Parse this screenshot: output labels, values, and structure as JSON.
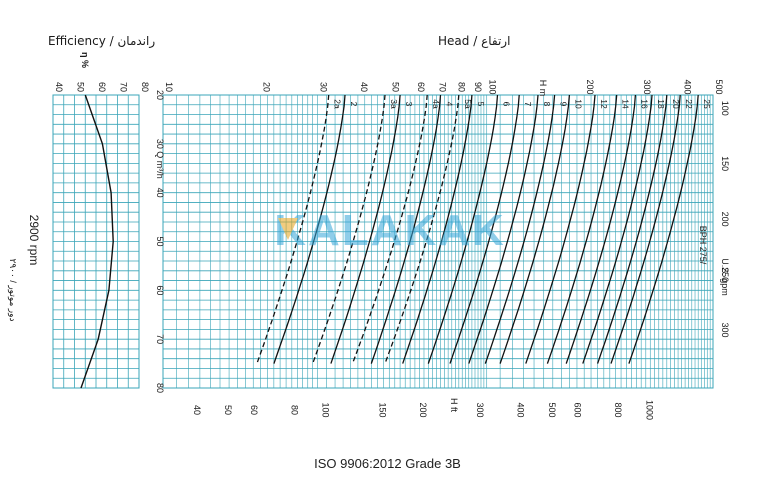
{
  "chart_data": {
    "type": "line",
    "footer": "ISO 9906:2012 Grade 3B",
    "speed_label": "2900 rpm",
    "speed_label_fa": "دور موتور / ۲۹۰۰",
    "model_label": "BPH 275/",
    "efficiency_panel": {
      "title": "Efficiency / راندمان",
      "axis_label": "η %",
      "ticks": [
        40,
        50,
        60,
        70,
        80
      ],
      "range": [
        40,
        80
      ],
      "curve": {
        "q": [
          20,
          30,
          40,
          50,
          60,
          70,
          80
        ],
        "eta": [
          55,
          63,
          67,
          68,
          66,
          61,
          53
        ]
      }
    },
    "head_panel": {
      "title": "Head / ارتفاع",
      "top_axis": {
        "label": "H m",
        "ticks": [
          10,
          20,
          30,
          40,
          50,
          60,
          70,
          80,
          90,
          100,
          200,
          300,
          400,
          500
        ],
        "range": [
          10,
          500
        ],
        "scale": "log"
      },
      "bottom_axis": {
        "label": "H ft",
        "ticks": [
          40,
          50,
          60,
          80,
          100,
          150,
          200,
          300,
          400,
          500,
          600,
          800,
          1000
        ]
      },
      "flow_axis": {
        "label": "Q m³/h",
        "ticks": [
          20,
          30,
          40,
          50,
          60,
          70,
          80
        ],
        "range": [
          20,
          80
        ]
      },
      "gpm_axis": {
        "label": "U.S. gpm",
        "ticks": [
          100,
          150,
          200,
          250,
          300
        ]
      },
      "curves": [
        {
          "name": "2a",
          "dashed": true,
          "h_start": 32.5,
          "h_end": 19.5
        },
        {
          "name": "2",
          "dashed": false,
          "h_start": 36.5,
          "h_end": 22.0
        },
        {
          "name": "3a",
          "dashed": true,
          "h_start": 48.5,
          "h_end": 29.0
        },
        {
          "name": "3",
          "dashed": false,
          "h_start": 54.0,
          "h_end": 33.0
        },
        {
          "name": "4a",
          "dashed": true,
          "h_start": 65.5,
          "h_end": 38.5
        },
        {
          "name": "4",
          "dashed": false,
          "h_start": 72.0,
          "h_end": 44.0
        },
        {
          "name": "5a",
          "dashed": true,
          "h_start": 82.0,
          "h_end": 48.5
        },
        {
          "name": "5",
          "dashed": false,
          "h_start": 90.0,
          "h_end": 55.0
        },
        {
          "name": "6",
          "dashed": false,
          "h_start": 108.0,
          "h_end": 66.0
        },
        {
          "name": "7",
          "dashed": false,
          "h_start": 126.0,
          "h_end": 77.0
        },
        {
          "name": "8",
          "dashed": false,
          "h_start": 144.0,
          "h_end": 88.0
        },
        {
          "name": "9",
          "dashed": false,
          "h_start": 162.0,
          "h_end": 99.0
        },
        {
          "name": "10",
          "dashed": false,
          "h_start": 180.0,
          "h_end": 110.0
        },
        {
          "name": "12",
          "dashed": false,
          "h_start": 216.0,
          "h_end": 132.0
        },
        {
          "name": "14",
          "dashed": false,
          "h_start": 252.0,
          "h_end": 154.0
        },
        {
          "name": "16",
          "dashed": false,
          "h_start": 288.0,
          "h_end": 176.0
        },
        {
          "name": "18",
          "dashed": false,
          "h_start": 324.0,
          "h_end": 198.0
        },
        {
          "name": "20",
          "dashed": false,
          "h_start": 360.0,
          "h_end": 220.0
        },
        {
          "name": "22",
          "dashed": false,
          "h_start": 396.0,
          "h_end": 242.0
        },
        {
          "name": "25",
          "dashed": false,
          "h_start": 450.0,
          "h_end": 275.0
        }
      ]
    }
  }
}
